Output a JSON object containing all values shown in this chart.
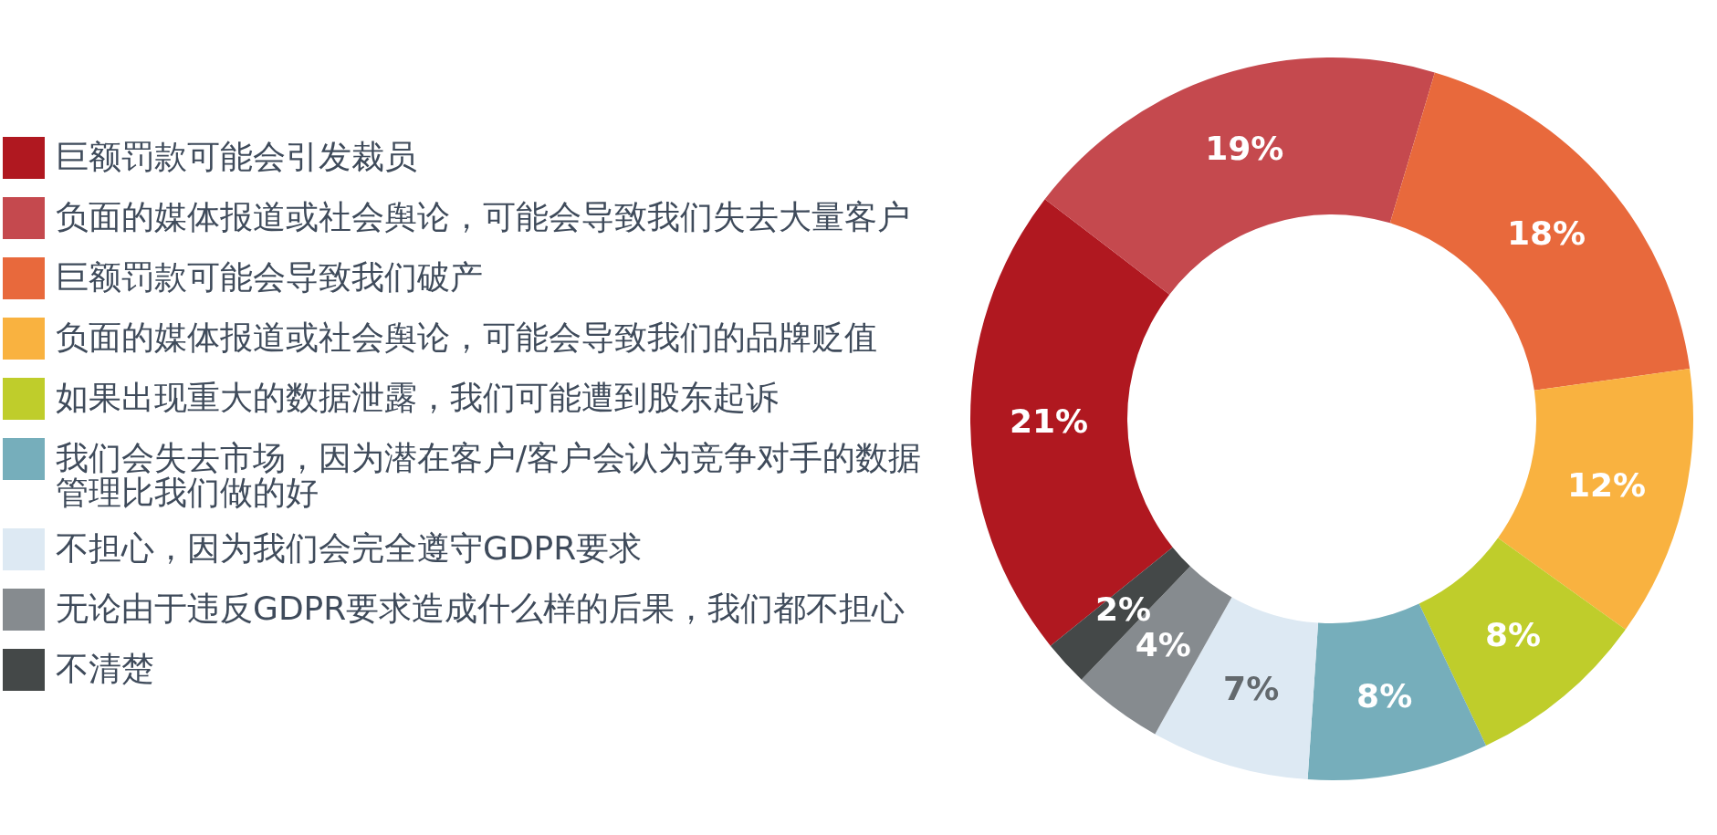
{
  "chart_data": {
    "type": "donut",
    "categories": [
      "巨额罚款可能会引发裁员",
      "负面的媒体报道或社会舆论，可能会导致我们失去大量客户",
      "巨额罚款可能会导致我们破产",
      "负面的媒体报道或社会舆论，可能会导致我们的品牌贬值",
      "如果出现重大的数据泄露，我们可能遭到股东起诉",
      "我们会失去市场，因为潜在客户/客户会认为竞争对手的数据管理比我们做的好",
      "不担心，因为我们会完全遵守GDPR要求",
      "无论由于违反GDPR要求造成什么样的后果，我们都不担心",
      "不清楚"
    ],
    "values": [
      21,
      19,
      18,
      12,
      8,
      8,
      7,
      4,
      2
    ],
    "colors": [
      "#b01820",
      "#c5494e",
      "#e8693c",
      "#f9b240",
      "#bfcd2b",
      "#76aebb",
      "#dde9f3",
      "#868b8f",
      "#444848"
    ],
    "value_labels": [
      "21%",
      "19%",
      "18%",
      "12%",
      "8%",
      "8%",
      "7%",
      "4%",
      "2%"
    ],
    "legend": "left"
  }
}
